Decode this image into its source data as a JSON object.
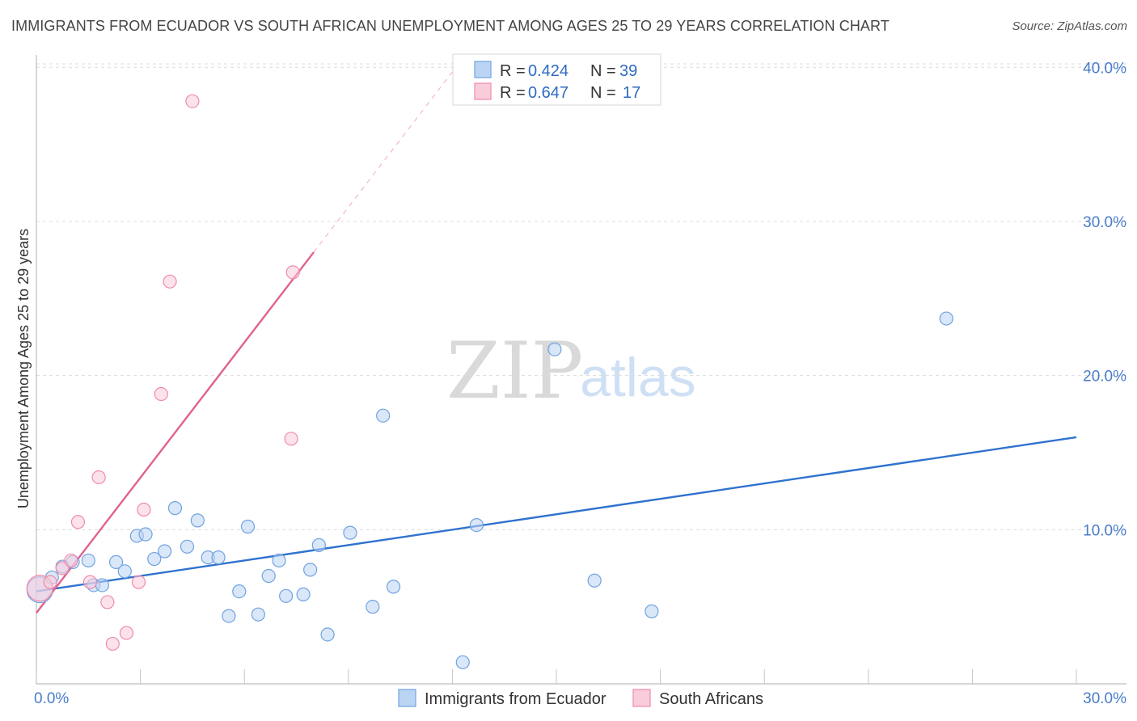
{
  "title": "IMMIGRANTS FROM ECUADOR VS SOUTH AFRICAN UNEMPLOYMENT AMONG AGES 25 TO 29 YEARS CORRELATION CHART",
  "source": "Source: ZipAtlas.com",
  "watermark": {
    "zip": "ZIP",
    "atlas": "atlas"
  },
  "chart_data": {
    "type": "scatter",
    "title": "IMMIGRANTS FROM ECUADOR VS SOUTH AFRICAN UNEMPLOYMENT AMONG AGES 25 TO 29 YEARS CORRELATION CHART",
    "xlabel": "",
    "ylabel": "Unemployment Among Ages 25 to 29 years",
    "xlim": [
      0,
      30
    ],
    "ylim": [
      0,
      40.8
    ],
    "x_tick_labels": [
      "0.0%",
      "30.0%"
    ],
    "y_ticks": [
      10,
      20,
      30,
      40
    ],
    "y_tick_labels": [
      "10.0%",
      "20.0%",
      "30.0%",
      "40.0%"
    ],
    "grid": true,
    "legend": {
      "position": "top-center",
      "rows": [
        {
          "r_label": "R =",
          "r_value": "0.424",
          "n_label": "N =",
          "n_value": "39"
        },
        {
          "r_label": "R =",
          "r_value": "0.647",
          "n_label": "N =",
          "n_value": "17"
        }
      ]
    },
    "series": [
      {
        "name": "Immigrants from Ecuador",
        "color": "#6fa3e0",
        "fill": "#bcd4f3",
        "line_color": "#2f72cf",
        "trend": {
          "x": [
            0,
            30
          ],
          "y": [
            6.0,
            16.0
          ]
        },
        "points": [
          {
            "x": 0.1,
            "y": 6.1,
            "big": true
          },
          {
            "x": 0.45,
            "y": 6.9
          },
          {
            "x": 0.75,
            "y": 7.6
          },
          {
            "x": 1.05,
            "y": 7.9
          },
          {
            "x": 1.5,
            "y": 8.0
          },
          {
            "x": 1.65,
            "y": 6.4
          },
          {
            "x": 1.9,
            "y": 6.4
          },
          {
            "x": 2.3,
            "y": 7.9
          },
          {
            "x": 2.55,
            "y": 7.3
          },
          {
            "x": 2.9,
            "y": 9.6
          },
          {
            "x": 3.15,
            "y": 9.7
          },
          {
            "x": 3.4,
            "y": 8.1
          },
          {
            "x": 3.7,
            "y": 8.6
          },
          {
            "x": 4.0,
            "y": 11.4
          },
          {
            "x": 4.35,
            "y": 8.9
          },
          {
            "x": 4.65,
            "y": 10.6
          },
          {
            "x": 4.95,
            "y": 8.2
          },
          {
            "x": 5.25,
            "y": 8.2
          },
          {
            "x": 5.55,
            "y": 4.4
          },
          {
            "x": 5.85,
            "y": 6.0
          },
          {
            "x": 6.1,
            "y": 10.2
          },
          {
            "x": 6.4,
            "y": 4.5
          },
          {
            "x": 6.7,
            "y": 7.0
          },
          {
            "x": 7.0,
            "y": 8.0
          },
          {
            "x": 7.2,
            "y": 5.7
          },
          {
            "x": 7.7,
            "y": 5.8
          },
          {
            "x": 7.9,
            "y": 7.4
          },
          {
            "x": 8.15,
            "y": 9.0
          },
          {
            "x": 8.4,
            "y": 3.2
          },
          {
            "x": 9.05,
            "y": 9.8
          },
          {
            "x": 9.7,
            "y": 5.0
          },
          {
            "x": 10.0,
            "y": 17.4
          },
          {
            "x": 10.3,
            "y": 6.3
          },
          {
            "x": 12.3,
            "y": 1.4
          },
          {
            "x": 12.7,
            "y": 10.3
          },
          {
            "x": 14.95,
            "y": 21.7
          },
          {
            "x": 16.1,
            "y": 6.7
          },
          {
            "x": 17.75,
            "y": 4.7
          },
          {
            "x": 26.25,
            "y": 23.7
          }
        ]
      },
      {
        "name": "South Africans",
        "color": "#f08aaa",
        "fill": "#f9ccda",
        "line_color": "#e0628e",
        "trend": {
          "x": [
            0,
            8.0
          ],
          "y": [
            4.6,
            28.0
          ]
        },
        "trend_extension": {
          "x": [
            8.0,
            12.0
          ],
          "y": [
            28.0,
            39.7
          ]
        },
        "points": [
          {
            "x": 0.1,
            "y": 6.2,
            "big": true
          },
          {
            "x": 0.4,
            "y": 6.6
          },
          {
            "x": 0.75,
            "y": 7.5
          },
          {
            "x": 1.0,
            "y": 8.0
          },
          {
            "x": 1.2,
            "y": 10.5
          },
          {
            "x": 1.55,
            "y": 6.6
          },
          {
            "x": 1.8,
            "y": 13.4
          },
          {
            "x": 2.05,
            "y": 5.3
          },
          {
            "x": 2.2,
            "y": 2.6
          },
          {
            "x": 2.6,
            "y": 3.3
          },
          {
            "x": 2.95,
            "y": 6.6
          },
          {
            "x": 3.1,
            "y": 11.3
          },
          {
            "x": 3.6,
            "y": 18.8
          },
          {
            "x": 3.85,
            "y": 26.1
          },
          {
            "x": 4.5,
            "y": 37.8
          },
          {
            "x": 7.35,
            "y": 15.9
          },
          {
            "x": 7.4,
            "y": 26.7
          }
        ]
      }
    ]
  }
}
